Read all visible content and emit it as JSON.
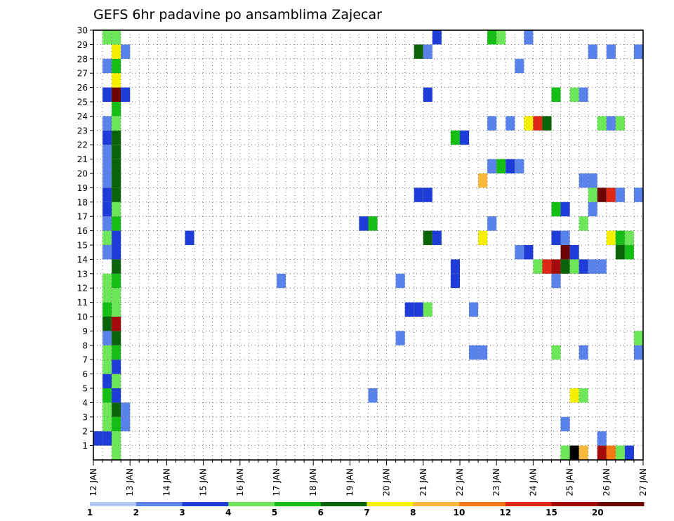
{
  "chart_data": {
    "type": "heatmap",
    "title": "GEFS 6hr padavine po ansamblima Zajecar",
    "xlabel": "",
    "ylabel": "",
    "x_range": [
      "12 JAN 00Z",
      "27 JAN 00Z"
    ],
    "x_tick_labels": [
      "12 JAN",
      "13 JAN",
      "14 JAN",
      "15 JAN",
      "16 JAN",
      "17 JAN",
      "18 JAN",
      "19 JAN",
      "20 JAN",
      "21 JAN",
      "22 JAN",
      "23 JAN",
      "24 JAN",
      "25 JAN",
      "26 JAN",
      "27 JAN"
    ],
    "y_tick_labels": [
      "1",
      "2",
      "3",
      "4",
      "5",
      "6",
      "7",
      "8",
      "9",
      "10",
      "11",
      "12",
      "13",
      "14",
      "15",
      "16",
      "17",
      "18",
      "19",
      "20",
      "21",
      "22",
      "23",
      "24",
      "25",
      "26",
      "27",
      "28",
      "29",
      "30"
    ],
    "ylim": [
      0,
      30
    ],
    "grid": true,
    "time_step_hours": 6,
    "colorbar": {
      "position": "bottom",
      "levels": [
        1,
        2,
        3,
        4,
        5,
        6,
        7,
        8,
        10,
        12,
        15,
        20
      ],
      "colors": [
        "#b4c8f5",
        "#5a82eb",
        "#1e3cd7",
        "#6ee65a",
        "#14be14",
        "#0a640a",
        "#f5f000",
        "#fab93c",
        "#f57814",
        "#dc2814",
        "#a50a0a",
        "#6e0505"
      ],
      "labels": [
        "1",
        "2",
        "3",
        "4",
        "5",
        "6",
        "7",
        "8",
        "10",
        "12",
        "15",
        "20"
      ]
    },
    "legend_position": "bottom",
    "members": [
      {
        "member": 0,
        "cells": [
          [
            12.5,
            3
          ],
          [
            24.75,
            3
          ],
          [
            25,
            12
          ],
          [
            25.25,
            7
          ],
          [
            25.75,
            10
          ],
          [
            26,
            8
          ],
          [
            26.25,
            3
          ],
          [
            26.5,
            2
          ]
        ]
      },
      {
        "member": 1,
        "cells": [
          [
            12,
            2
          ],
          [
            12.25,
            2
          ],
          [
            12.5,
            3
          ],
          [
            25.75,
            1
          ]
        ]
      },
      {
        "member": 2,
        "cells": [
          [
            12.25,
            3
          ],
          [
            12.5,
            4
          ],
          [
            12.75,
            1
          ],
          [
            24.75,
            1
          ]
        ]
      },
      {
        "member": 3,
        "cells": [
          [
            12.25,
            3
          ],
          [
            12.5,
            5
          ],
          [
            12.75,
            1
          ]
        ]
      },
      {
        "member": 4,
        "cells": [
          [
            12.25,
            4
          ],
          [
            12.5,
            2
          ],
          [
            19.5,
            1
          ],
          [
            25,
            6
          ],
          [
            25.25,
            3
          ]
        ]
      },
      {
        "member": 5,
        "cells": [
          [
            12.25,
            2
          ],
          [
            12.5,
            3
          ]
        ]
      },
      {
        "member": 6,
        "cells": [
          [
            12.25,
            3
          ],
          [
            12.5,
            2
          ]
        ]
      },
      {
        "member": 7,
        "cells": [
          [
            12.25,
            3
          ],
          [
            12.5,
            4
          ],
          [
            22.25,
            1
          ],
          [
            22.5,
            1
          ],
          [
            24.5,
            3
          ],
          [
            25.25,
            1
          ],
          [
            26.75,
            1
          ]
        ]
      },
      {
        "member": 8,
        "cells": [
          [
            12.25,
            1
          ],
          [
            12.5,
            5
          ],
          [
            20.25,
            1
          ],
          [
            26.75,
            3
          ],
          [
            27,
            11
          ]
        ]
      },
      {
        "member": 9,
        "cells": [
          [
            12.25,
            5
          ],
          [
            12.5,
            10
          ]
        ]
      },
      {
        "member": 10,
        "cells": [
          [
            12.25,
            4
          ],
          [
            12.5,
            3
          ],
          [
            20.5,
            2
          ],
          [
            20.75,
            2
          ],
          [
            21,
            3
          ],
          [
            22.25,
            1
          ]
        ]
      },
      {
        "member": 11,
        "cells": [
          [
            12.25,
            3
          ],
          [
            12.5,
            3
          ]
        ]
      },
      {
        "member": 12,
        "cells": [
          [
            12.25,
            3
          ],
          [
            12.5,
            4
          ],
          [
            17,
            1
          ],
          [
            20.25,
            1
          ],
          [
            21.75,
            2
          ],
          [
            24.5,
            1
          ]
        ]
      },
      {
        "member": 13,
        "cells": [
          [
            12.5,
            5
          ],
          [
            21.75,
            2
          ],
          [
            24,
            3
          ],
          [
            24.25,
            9
          ],
          [
            24.5,
            10
          ],
          [
            24.75,
            5
          ],
          [
            25,
            3
          ],
          [
            25.25,
            2
          ],
          [
            25.5,
            1
          ],
          [
            25.75,
            1
          ]
        ]
      },
      {
        "member": 14,
        "cells": [
          [
            12.25,
            1
          ],
          [
            12.5,
            2
          ],
          [
            23.5,
            1
          ],
          [
            23.75,
            2
          ],
          [
            24.75,
            11
          ],
          [
            25,
            2
          ],
          [
            26.25,
            5
          ],
          [
            26.5,
            4
          ]
        ]
      },
      {
        "member": 15,
        "cells": [
          [
            12.25,
            3
          ],
          [
            12.5,
            2
          ],
          [
            14.5,
            2
          ],
          [
            21,
            5
          ],
          [
            21.25,
            2
          ],
          [
            22.5,
            6
          ],
          [
            24.5,
            2
          ],
          [
            24.75,
            1
          ],
          [
            26,
            6
          ],
          [
            26.25,
            4
          ],
          [
            26.5,
            3
          ]
        ]
      },
      {
        "member": 16,
        "cells": [
          [
            12.25,
            1
          ],
          [
            12.5,
            4
          ],
          [
            19.25,
            2
          ],
          [
            19.5,
            4
          ],
          [
            22.75,
            1
          ],
          [
            25.25,
            3
          ]
        ]
      },
      {
        "member": 17,
        "cells": [
          [
            12.25,
            2
          ],
          [
            12.5,
            3
          ],
          [
            24.5,
            4
          ],
          [
            24.75,
            2
          ],
          [
            25.5,
            1
          ]
        ]
      },
      {
        "member": 18,
        "cells": [
          [
            12.25,
            2
          ],
          [
            12.5,
            5
          ],
          [
            20.75,
            2
          ],
          [
            21,
            2
          ],
          [
            25.5,
            3
          ],
          [
            25.75,
            11
          ],
          [
            26,
            9
          ],
          [
            26.25,
            1
          ],
          [
            26.75,
            1
          ],
          [
            27,
            7
          ]
        ]
      },
      {
        "member": 19,
        "cells": [
          [
            12.25,
            1
          ],
          [
            12.5,
            5
          ],
          [
            22.5,
            7
          ],
          [
            25.25,
            1
          ],
          [
            25.5,
            1
          ]
        ]
      },
      {
        "member": 20,
        "cells": [
          [
            12.25,
            1
          ],
          [
            12.5,
            5
          ],
          [
            22.75,
            1
          ],
          [
            23,
            4
          ],
          [
            23.25,
            2
          ],
          [
            23.5,
            1
          ]
        ]
      },
      {
        "member": 21,
        "cells": [
          [
            12.25,
            1
          ],
          [
            12.5,
            5
          ]
        ]
      },
      {
        "member": 22,
        "cells": [
          [
            12.25,
            2
          ],
          [
            12.5,
            5
          ],
          [
            21.75,
            4
          ],
          [
            22,
            2
          ]
        ]
      },
      {
        "member": 23,
        "cells": [
          [
            12.25,
            1
          ],
          [
            12.5,
            3
          ],
          [
            22.75,
            1
          ],
          [
            23.25,
            1
          ],
          [
            23.75,
            6
          ],
          [
            24,
            9
          ],
          [
            24.25,
            5
          ],
          [
            25.75,
            3
          ],
          [
            26,
            1
          ],
          [
            26.25,
            3
          ]
        ]
      },
      {
        "member": 24,
        "cells": [
          [
            12.5,
            4
          ]
        ]
      },
      {
        "member": 25,
        "cells": [
          [
            12.25,
            2
          ],
          [
            12.5,
            11
          ],
          [
            12.75,
            2
          ],
          [
            21,
            2
          ],
          [
            24.5,
            4
          ],
          [
            25,
            3
          ],
          [
            25.25,
            1
          ]
        ]
      },
      {
        "member": 26,
        "cells": [
          [
            12.5,
            6
          ]
        ]
      },
      {
        "member": 27,
        "cells": [
          [
            12.25,
            1
          ],
          [
            12.5,
            4
          ],
          [
            23.5,
            1
          ]
        ]
      },
      {
        "member": 28,
        "cells": [
          [
            12.5,
            6
          ],
          [
            12.75,
            1
          ],
          [
            20.75,
            5
          ],
          [
            21,
            1
          ],
          [
            25.5,
            1
          ],
          [
            26,
            1
          ],
          [
            26.75,
            1
          ]
        ]
      },
      {
        "member": 29,
        "cells": [
          [
            12.25,
            3
          ],
          [
            12.5,
            3
          ],
          [
            21.25,
            2
          ],
          [
            22.75,
            4
          ],
          [
            23,
            3
          ],
          [
            23.75,
            1
          ]
        ]
      }
    ]
  }
}
